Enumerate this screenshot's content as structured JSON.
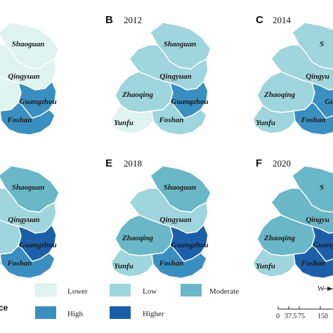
{
  "panels": [
    {
      "letter": "",
      "year": "",
      "cities": {
        "shaoguan": "Shaoguan",
        "qingyuan": "Qingyuan",
        "guangzhou": "Guangzhou",
        "foshan": "Foshan"
      }
    },
    {
      "letter": "B",
      "year": "2012",
      "cities": {
        "shaoguan": "Shaoguan",
        "qingyuan": "Qingyuan",
        "zhaoqing": "Zhaoqing",
        "guangzhou": "Guangzhou",
        "yunfu": "Yunfu",
        "foshan": "Foshan"
      }
    },
    {
      "letter": "C",
      "year": "2014",
      "cities": {
        "shaoguan": "S",
        "qingyuan": "Qingyu",
        "zhaoqing": "Zhaoqing",
        "guangzhou": "Gua",
        "yunfu": "Yunfu",
        "foshan": "Foshan"
      }
    },
    {
      "letter": "",
      "year": "",
      "cities": {
        "shaoguan": "Shaoguan",
        "qingyuan": "Qingyuan",
        "zhaoqing": "g",
        "guangzhou": "Guangzhou",
        "foshan": "Foshan"
      }
    },
    {
      "letter": "E",
      "year": "2018",
      "cities": {
        "shaoguan": "Shaoguan",
        "qingyuan": "Qingyuan",
        "zhaoqing": "Zhaoqing",
        "guangzhou": "Guangzhou",
        "yunfu": "Yunfu",
        "foshan": "Foshan"
      }
    },
    {
      "letter": "F",
      "year": "2020",
      "cities": {
        "shaoguan": "S",
        "qingyuan": "Qingyu",
        "zhaoqing": "Zhaoqing",
        "guangzhou": "Guangzhou",
        "yunfu": "Yunfu",
        "foshan": "Foshan"
      }
    }
  ],
  "legend": {
    "title_fragment": "ce",
    "items": [
      {
        "label": "Lower",
        "color": "#dff3ef"
      },
      {
        "label": "Low",
        "color": "#9fd5dc"
      },
      {
        "label": "Moderate",
        "color": "#6ab7c8"
      },
      {
        "label": "High",
        "color": "#3b8fc0"
      },
      {
        "label": "Higher",
        "color": "#1c5fa8"
      }
    ]
  },
  "scale": {
    "labels": [
      "0",
      "37.5",
      "75",
      "150"
    ]
  },
  "compass": {
    "label": "W"
  },
  "map_levels": [
    {
      "shaoguan": "Lower",
      "qingyuan": "Lower",
      "zhaoqing": "Lower",
      "guangzhou": "High",
      "yunfu": "Lower",
      "foshan": "High"
    },
    {
      "shaoguan": "Low",
      "qingyuan": "Low",
      "zhaoqing": "Low",
      "guangzhou": "High",
      "yunfu": "Lower",
      "foshan": "Low"
    },
    {
      "shaoguan": "Low",
      "qingyuan": "Low",
      "zhaoqing": "Low",
      "guangzhou": "High",
      "yunfu": "Low",
      "foshan": "High"
    },
    {
      "shaoguan": "Moderate",
      "qingyuan": "Low",
      "zhaoqing": "Low",
      "guangzhou": "Higher",
      "yunfu": "Low",
      "foshan": "High"
    },
    {
      "shaoguan": "Moderate",
      "qingyuan": "Low",
      "zhaoqing": "Moderate",
      "guangzhou": "Higher",
      "yunfu": "Low",
      "foshan": "High"
    },
    {
      "shaoguan": "Moderate",
      "qingyuan": "Moderate",
      "zhaoqing": "Moderate",
      "guangzhou": "Higher",
      "yunfu": "Low",
      "foshan": "Higher"
    }
  ]
}
